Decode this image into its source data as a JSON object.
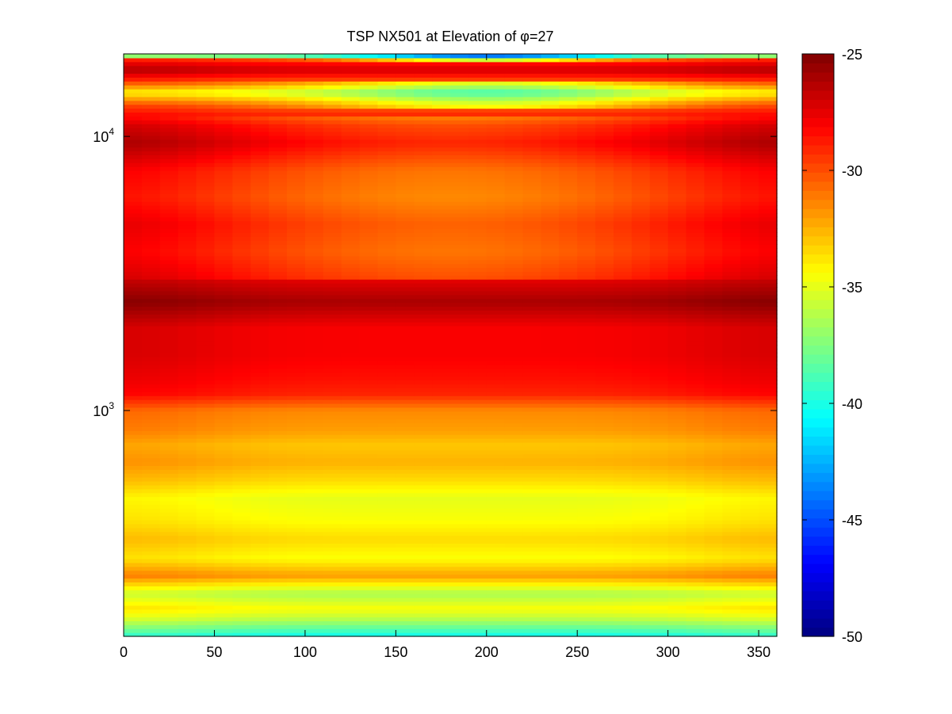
{
  "chart_data": {
    "type": "heatmap",
    "title": "TSP NX501 at Elevation of φ=27",
    "xlabel": "",
    "ylabel": "",
    "x_range": [
      0,
      360
    ],
    "x_ticks": [
      0,
      50,
      100,
      150,
      200,
      250,
      300,
      350
    ],
    "y_scale": "log",
    "y_range": [
      150,
      20000
    ],
    "y_ticks": [
      {
        "value": 1000,
        "base": "10",
        "exp": "3"
      },
      {
        "value": 10000,
        "base": "10",
        "exp": "4"
      }
    ],
    "colorbar": {
      "colormap": "jet",
      "range": [
        -50,
        -25
      ],
      "ticks": [
        "-25",
        "-30",
        "-35",
        "-40",
        "-45",
        "-50"
      ]
    },
    "frequency_profile": [
      {
        "f": 150,
        "level": -40.5
      },
      {
        "f": 160,
        "level": -38.5
      },
      {
        "f": 175,
        "level": -36
      },
      {
        "f": 190,
        "level": -34.5
      },
      {
        "f": 215,
        "level": -36.5
      },
      {
        "f": 250,
        "level": -32
      },
      {
        "f": 290,
        "level": -34.5
      },
      {
        "f": 340,
        "level": -33.5
      },
      {
        "f": 400,
        "level": -34.5
      },
      {
        "f": 480,
        "level": -35
      },
      {
        "f": 560,
        "level": -33.5
      },
      {
        "f": 650,
        "level": -32.5
      },
      {
        "f": 750,
        "level": -33
      },
      {
        "f": 850,
        "level": -32
      },
      {
        "f": 1000,
        "level": -31.5
      },
      {
        "f": 1150,
        "level": -29
      },
      {
        "f": 1300,
        "level": -28.5
      },
      {
        "f": 1600,
        "level": -28
      },
      {
        "f": 2000,
        "level": -28
      },
      {
        "f": 2500,
        "level": -26
      },
      {
        "f": 3000,
        "level": -27.5
      },
      {
        "f": 3800,
        "level": -28.5
      },
      {
        "f": 4800,
        "level": -28
      },
      {
        "f": 6000,
        "level": -29
      },
      {
        "f": 7500,
        "level": -28.5
      },
      {
        "f": 9500,
        "level": -26.5
      },
      {
        "f": 11000,
        "level": -27.5
      },
      {
        "f": 13000,
        "level": -30.5
      },
      {
        "f": 14500,
        "level": -35
      },
      {
        "f": 16000,
        "level": -30
      },
      {
        "f": 17500,
        "level": -27
      },
      {
        "f": 19000,
        "level": -29
      },
      {
        "f": 20000,
        "level": -42
      }
    ],
    "angular_variation": [
      {
        "f_from": 3000,
        "f_to": 12000,
        "center_deg": 180,
        "delta": -2.5,
        "width_deg": 130
      },
      {
        "f_from": 12500,
        "f_to": 16000,
        "center_deg": 200,
        "delta": -4,
        "width_deg": 90
      },
      {
        "f_from": 18500,
        "f_to": 20000,
        "center_deg": 200,
        "delta": -6,
        "width_deg": 70
      },
      {
        "f_from": 150,
        "f_to": 20000,
        "center_deg": 0,
        "delta": 0.8,
        "width_deg": 60
      },
      {
        "f_from": 150,
        "f_to": 20000,
        "center_deg": 360,
        "delta": 0.8,
        "width_deg": 60
      }
    ]
  }
}
